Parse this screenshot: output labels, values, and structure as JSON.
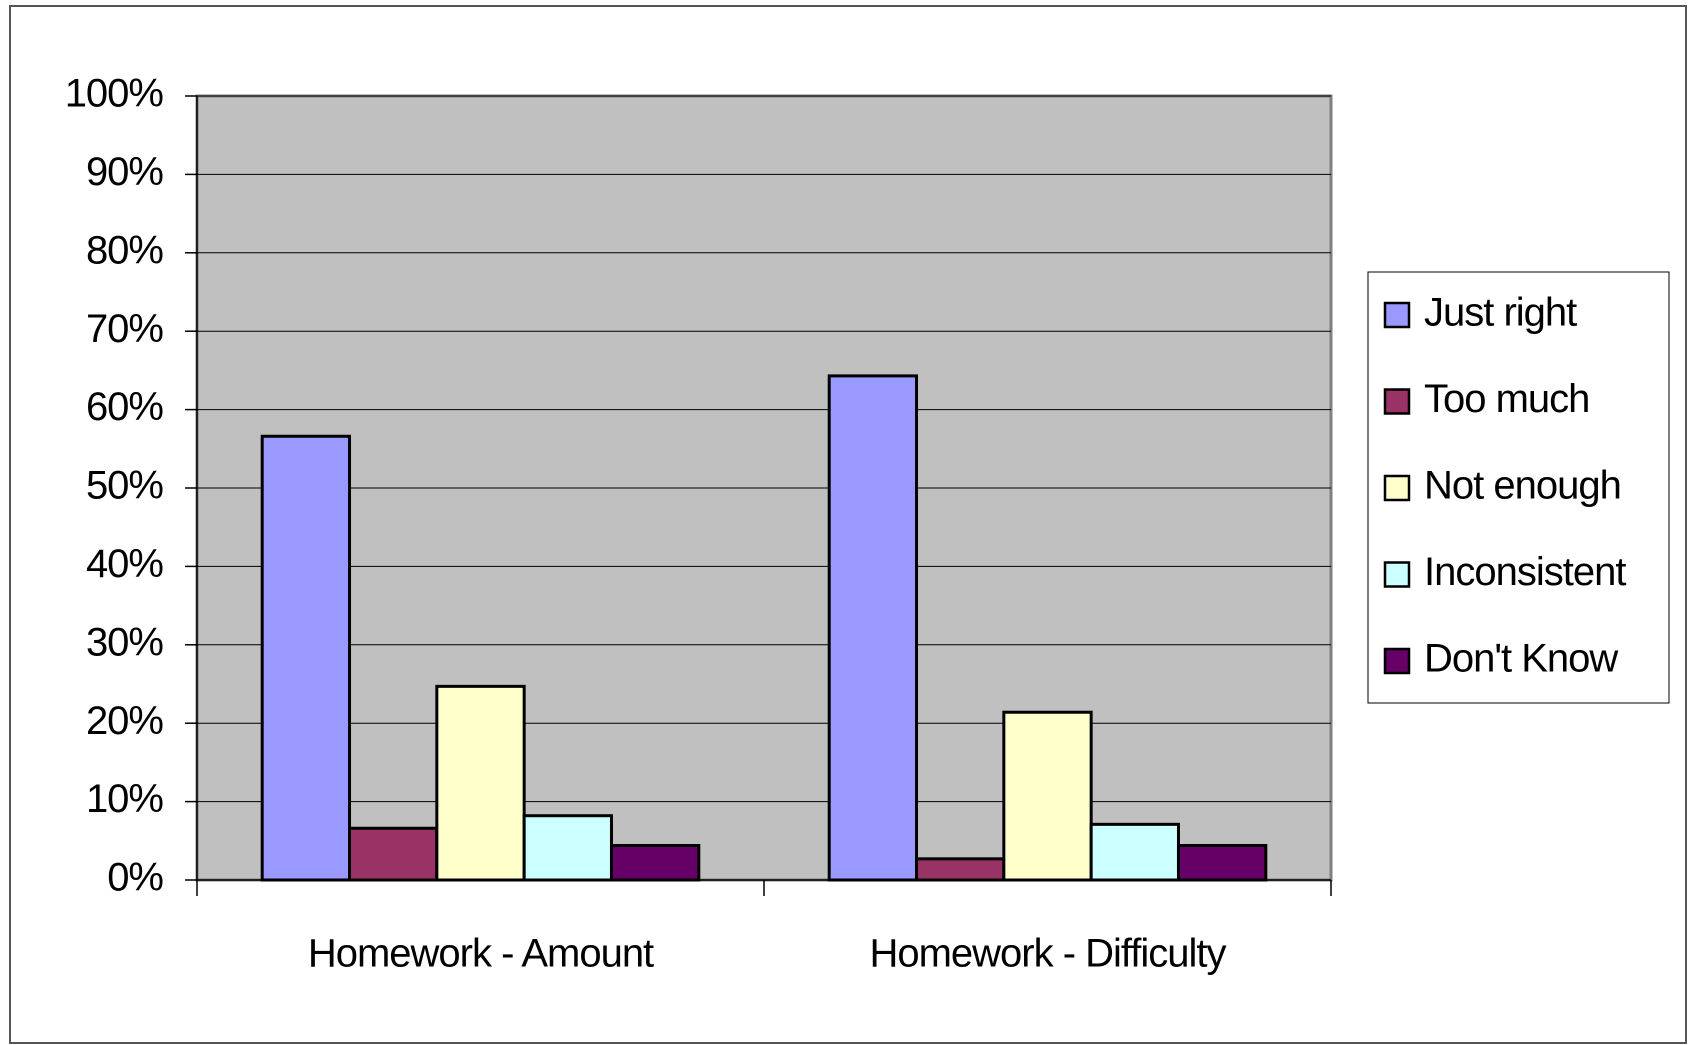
{
  "chart_data": {
    "type": "bar",
    "categories": [
      "Homework - Amount",
      "Homework - Difficulty"
    ],
    "series": [
      {
        "name": "Just right",
        "color": "#9999ff",
        "values": [
          56.6,
          64.3
        ]
      },
      {
        "name": "Too much",
        "color": "#993366",
        "values": [
          6.6,
          2.7
        ]
      },
      {
        "name": "Not enough",
        "color": "#ffffcc",
        "values": [
          24.7,
          21.4
        ]
      },
      {
        "name": "Inconsistent",
        "color": "#ccffff",
        "values": [
          8.2,
          7.1
        ]
      },
      {
        "name": "Don't Know",
        "color": "#660066",
        "values": [
          4.4,
          4.4
        ]
      }
    ],
    "ylim": [
      0,
      100
    ],
    "yticks": [
      {
        "value": 0,
        "label": "0%"
      },
      {
        "value": 10,
        "label": "10%"
      },
      {
        "value": 20,
        "label": "20%"
      },
      {
        "value": 30,
        "label": "30%"
      },
      {
        "value": 40,
        "label": "40%"
      },
      {
        "value": 50,
        "label": "50%"
      },
      {
        "value": 60,
        "label": "60%"
      },
      {
        "value": 70,
        "label": "70%"
      },
      {
        "value": 80,
        "label": "80%"
      },
      {
        "value": 90,
        "label": "90%"
      },
      {
        "value": 100,
        "label": "100%"
      }
    ],
    "grid": true,
    "plot_background": "#c0c0c0",
    "legend": "right"
  }
}
